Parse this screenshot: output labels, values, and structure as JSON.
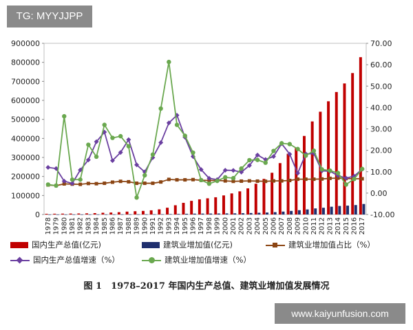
{
  "top_badge": "TG: MYYJJPP",
  "bottom_badge": "www.kaiyunfusion.com",
  "caption": "图 1　1978–2017 年国内生产总值、建筑业增加值发展情况",
  "legend": {
    "gdp": "国内生产总值(亿元)",
    "cva": "建筑业增加值(亿元)",
    "ratio": "建筑业增加值占比（%）",
    "gdp_growth": "国内生产总值增速（%）",
    "cva_growth": "建筑业增加值增速（%）"
  },
  "colors": {
    "gdp": "#c00000",
    "cva": "#1f2f6e",
    "ratio": "#8b4513",
    "gdp_growth": "#6a3fa0",
    "cva_growth": "#6aa84f"
  },
  "chart_data": {
    "type": "bar",
    "title": "",
    "categories": [
      "1978",
      "1979",
      "1980",
      "1981",
      "1982",
      "1983",
      "1984",
      "1985",
      "1986",
      "1987",
      "1988",
      "1989",
      "1990",
      "1991",
      "1992",
      "1993",
      "1994",
      "1995",
      "1996",
      "1997",
      "1998",
      "1999",
      "2000",
      "2001",
      "2002",
      "2003",
      "2004",
      "2005",
      "2006",
      "2007",
      "2008",
      "2009",
      "2010",
      "2011",
      "2012",
      "2013",
      "2014",
      "2015",
      "2016",
      "2017"
    ],
    "y_left": {
      "ylim": [
        0,
        900000
      ],
      "ticks": [
        "0",
        "100000",
        "200000",
        "300000",
        "400000",
        "500000",
        "600000",
        "700000",
        "800000",
        "900000"
      ]
    },
    "y_right": {
      "ylim": [
        -10,
        70
      ],
      "ticks": [
        "-10.00",
        "0.00",
        "10.00",
        "20.00",
        "30.00",
        "40.00",
        "50.00",
        "60.00",
        "70.00"
      ]
    },
    "series": [
      {
        "name": "国内生产总值(亿元)",
        "axis": "left",
        "kind": "bar",
        "values": [
          3679,
          4101,
          4588,
          4936,
          5373,
          6021,
          7279,
          9099,
          10376,
          12175,
          15180,
          17180,
          18873,
          22006,
          27195,
          35673,
          48638,
          61340,
          71814,
          79715,
          85196,
          90564,
          100280,
          110863,
          121717,
          137422,
          161840,
          187319,
          219439,
          270232,
          319516,
          349081,
          413030,
          489301,
          540367,
          595244,
          643974,
          689052,
          743586,
          827122
        ]
      },
      {
        "name": "建筑业增加值(亿元)",
        "axis": "left",
        "kind": "bar",
        "values": [
          139,
          144,
          196,
          208,
          221,
          271,
          317,
          418,
          526,
          666,
          811,
          794,
          860,
          1015,
          1416,
          2284,
          3013,
          3820,
          4541,
          4818,
          5032,
          5320,
          5712,
          6109,
          6814,
          7861,
          9081,
          10368,
          12408,
          15297,
          18807,
          22682,
          26661,
          31943,
          35491,
          40897,
          44881,
          46627,
          49703,
          55313
        ]
      },
      {
        "name": "建筑业增加值占比（%）",
        "axis": "right",
        "kind": "line",
        "values": [
          3.8,
          3.5,
          4.3,
          4.2,
          4.1,
          4.5,
          4.4,
          4.6,
          5.1,
          5.5,
          5.3,
          4.6,
          4.6,
          4.6,
          5.2,
          6.4,
          6.2,
          6.2,
          6.3,
          6.0,
          5.9,
          5.9,
          5.7,
          5.5,
          5.6,
          5.7,
          5.6,
          5.5,
          5.7,
          5.7,
          5.9,
          6.5,
          6.5,
          6.5,
          6.6,
          6.9,
          7.0,
          6.8,
          6.7,
          6.7
        ]
      },
      {
        "name": "国内生产总值增速（%）",
        "axis": "right",
        "kind": "line",
        "values": [
          12.0,
          11.5,
          5.6,
          4.5,
          10.8,
          15.5,
          24.0,
          28.5,
          15.2,
          19.0,
          25.0,
          13.2,
          9.9,
          16.6,
          23.6,
          32.8,
          36.4,
          26.1,
          17.1,
          11.0,
          6.9,
          6.3,
          10.7,
          10.6,
          9.8,
          12.9,
          17.8,
          15.7,
          17.1,
          23.1,
          18.2,
          9.3,
          18.3,
          18.5,
          10.4,
          10.2,
          8.2,
          7.0,
          7.9,
          11.2
        ]
      },
      {
        "name": "建筑业增加值增速（%）",
        "axis": "right",
        "kind": "line",
        "values": [
          4.0,
          3.5,
          35.9,
          6.3,
          6.3,
          22.6,
          17.0,
          31.9,
          25.8,
          26.6,
          21.9,
          -2.1,
          8.3,
          18.0,
          39.5,
          61.3,
          31.9,
          26.8,
          18.9,
          6.1,
          4.4,
          5.7,
          7.4,
          7.0,
          11.5,
          15.4,
          15.5,
          14.2,
          19.7,
          23.3,
          22.9,
          20.6,
          17.5,
          19.8,
          11.1,
          10.5,
          9.4,
          4.0,
          6.6,
          11.3
        ]
      }
    ]
  }
}
